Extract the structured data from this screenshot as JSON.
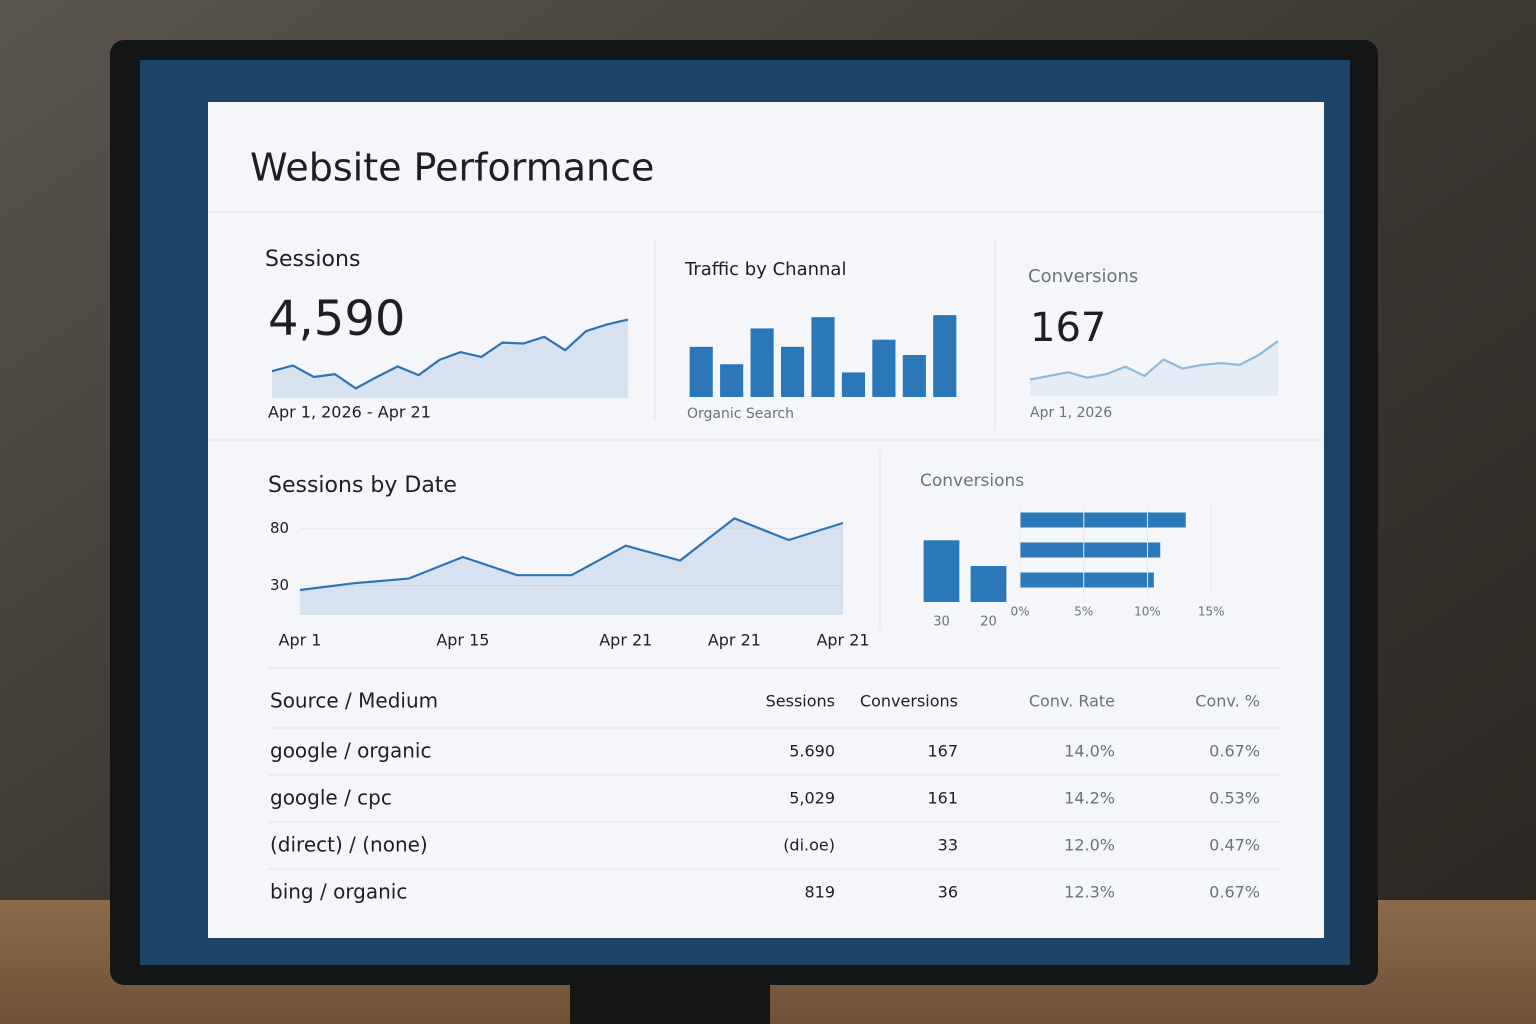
{
  "header": {
    "title": "Website Performance"
  },
  "cards": [
    {
      "title": "Sessions",
      "value": "4,590",
      "caption": "Apr 1, 2026 - Apr 21",
      "chart": {
        "type": "area",
        "color": "#2e74b5",
        "ylim": [
          0,
          90
        ],
        "values": [
          28,
          34,
          22,
          25,
          10,
          22,
          33,
          24,
          40,
          48,
          43,
          58,
          57,
          64,
          50,
          70,
          77,
          82
        ]
      }
    },
    {
      "title": "Traffic by Channal",
      "caption": "Organic Search",
      "chart": {
        "type": "bar",
        "color": "#2a78b8",
        "ylim": [
          0,
          85
        ],
        "values": [
          49,
          32,
          67,
          49,
          78,
          24,
          56,
          41,
          80
        ]
      }
    },
    {
      "title": "Conversions",
      "value": "167",
      "caption": "Apr 1, 2026",
      "chart": {
        "type": "area",
        "color": "#8fb8dc",
        "ylim": [
          0,
          70
        ],
        "values": [
          18,
          22,
          26,
          20,
          24,
          32,
          22,
          40,
          30,
          34,
          36,
          34,
          45,
          60
        ]
      }
    }
  ],
  "sessions_by_date": {
    "type": "line",
    "title": "Sessions by Date",
    "color": "#2e74b5",
    "categories": [
      "Apr 1",
      null,
      null,
      "Apr 15",
      null,
      null,
      "Apr 21",
      null,
      "Apr 21",
      null,
      "Apr 21"
    ],
    "values": [
      26,
      32,
      36,
      55,
      39,
      39,
      65,
      52,
      89,
      70,
      85
    ],
    "ylim": [
      4,
      92
    ],
    "yticks": [
      30,
      80
    ]
  },
  "conversions": {
    "title": "Conversions",
    "color": "#2a78b8",
    "columns": {
      "type": "bar",
      "categories": [
        "30",
        "20"
      ],
      "values": [
        60,
        35
      ],
      "ylim": [
        0,
        70
      ]
    },
    "rows": {
      "type": "barh",
      "values": [
        13,
        11,
        10.5
      ],
      "xlim": [
        0,
        20
      ],
      "xticks": [
        {
          "value": 0,
          "label": "0%"
        },
        {
          "value": 5,
          "label": "5%"
        },
        {
          "value": 10,
          "label": "10%"
        },
        {
          "value": 15,
          "label": "15%"
        }
      ]
    }
  },
  "table": {
    "columns": [
      "Source / Medium",
      "Sessions",
      "Conversions",
      "Conv. Rate",
      "Conv. %"
    ],
    "rows": [
      [
        "google / organic",
        "5.690",
        "167",
        "14.0%",
        "0.67%"
      ],
      [
        "google / cpc",
        "5,029",
        "161",
        "14.2%",
        "0.53%"
      ],
      [
        "(direct) / (none)",
        "(di.oe)",
        "33",
        "12.0%",
        "0.47%"
      ],
      [
        "bing / organic",
        "819",
        "36",
        "12.3%",
        "0.67%"
      ]
    ]
  }
}
